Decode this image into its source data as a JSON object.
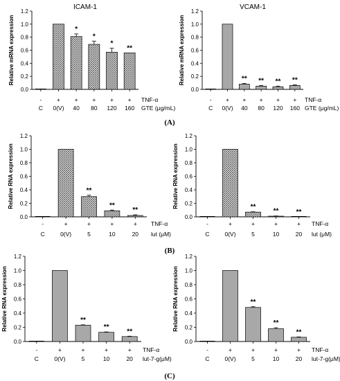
{
  "panel_labels": [
    "(A)",
    "(B)",
    "(C)"
  ],
  "chart_data": [
    {
      "id": "A-left",
      "type": "bar",
      "title": "ICAM-1",
      "ylabel": "Relative mRNA expression",
      "ylim": [
        0,
        1.2
      ],
      "yticks": [
        "0.0",
        "0.2",
        "0.4",
        "0.6",
        "0.8",
        "1.0",
        "1.2"
      ],
      "categories": [
        "C",
        "0(V)",
        "40",
        "80",
        "120",
        "160"
      ],
      "tnf_row": [
        "-",
        "+",
        "+",
        "+",
        "+",
        "+"
      ],
      "tnf_label": "TNF-α",
      "dose_label": "GTE (μg/mL)",
      "values": [
        0.0,
        1.0,
        0.81,
        0.69,
        0.57,
        0.56
      ],
      "errors": [
        0,
        0,
        0.04,
        0.05,
        0.06,
        0.0
      ],
      "significance": [
        "",
        "",
        "*",
        "*",
        "*",
        "**"
      ],
      "pattern": "cross"
    },
    {
      "id": "A-right",
      "type": "bar",
      "title": "VCAM-1",
      "ylabel": "Relative mRNA expression",
      "ylim": [
        0,
        1.2
      ],
      "yticks": [
        "0.0",
        "0.2",
        "0.4",
        "0.6",
        "0.8",
        "1.0",
        "1.2"
      ],
      "categories": [
        "C",
        "0(V)",
        "40",
        "80",
        "120",
        "160"
      ],
      "tnf_row": [
        "-",
        "+",
        "+",
        "+",
        "+",
        "+"
      ],
      "tnf_label": "TNF-α",
      "dose_label": "GTE (μg/mL)",
      "values": [
        0.0,
        1.0,
        0.08,
        0.05,
        0.04,
        0.06
      ],
      "errors": [
        0,
        0,
        0.01,
        0.01,
        0.01,
        0.01
      ],
      "significance": [
        "",
        "",
        "**",
        "**",
        "**",
        "**"
      ],
      "pattern": "solid"
    },
    {
      "id": "B-left",
      "type": "bar",
      "title": "",
      "ylabel": "Relative RNA expression",
      "ylim": [
        0,
        1.2
      ],
      "yticks": [
        "0.0",
        "0.2",
        "0.4",
        "0.6",
        "0.8",
        "1.0",
        "1.2"
      ],
      "categories": [
        "C",
        "0(V)",
        "5",
        "10",
        "20"
      ],
      "tnf_row": [
        "-",
        "+",
        "+",
        "+",
        "+"
      ],
      "tnf_label": "TNF-α",
      "dose_label": "lut (μM)",
      "values": [
        0.0,
        1.0,
        0.3,
        0.09,
        0.02
      ],
      "errors": [
        0,
        0,
        0.02,
        0.01,
        0.01
      ],
      "significance": [
        "",
        "",
        "**",
        "**",
        "**"
      ],
      "pattern": "cross"
    },
    {
      "id": "B-right",
      "type": "bar",
      "title": "",
      "ylabel": "Relative RNA expression",
      "ylim": [
        0,
        1.2
      ],
      "yticks": [
        "0.0",
        "0.2",
        "0.4",
        "0.6",
        "0.8",
        "1.0",
        "1.2"
      ],
      "categories": [
        "C",
        "0(V)",
        "5",
        "10",
        "20"
      ],
      "tnf_row": [
        "-",
        "+",
        "+",
        "+",
        "+"
      ],
      "tnf_label": "TNF-α",
      "dose_label": "lut (μM)",
      "values": [
        0.0,
        1.0,
        0.07,
        0.01,
        0.0
      ],
      "errors": [
        0,
        0,
        0.005,
        0.003,
        0
      ],
      "significance": [
        "",
        "",
        "**",
        "**",
        "**"
      ],
      "pattern": "cross"
    },
    {
      "id": "C-left",
      "type": "bar",
      "title": "",
      "ylabel": "Relative RNA expression",
      "ylim": [
        0,
        1.2
      ],
      "yticks": [
        "0.0",
        "0.2",
        "0.4",
        "0.6",
        "0.8",
        "1.0",
        "1.2"
      ],
      "categories": [
        "C",
        "0(V)",
        "5",
        "10",
        "20"
      ],
      "tnf_row": [
        "-",
        "+",
        "+",
        "+",
        "+"
      ],
      "tnf_label": "TNF-α",
      "dose_label": "lut-7-g(μM)",
      "values": [
        0.0,
        1.0,
        0.23,
        0.13,
        0.07
      ],
      "errors": [
        0,
        0,
        0.005,
        0.005,
        0.005
      ],
      "significance": [
        "",
        "",
        "**",
        "**",
        "**"
      ],
      "pattern": "solid"
    },
    {
      "id": "C-right",
      "type": "bar",
      "title": "",
      "ylabel": "Relative RNA expression",
      "ylim": [
        0,
        1.2
      ],
      "yticks": [
        "0.0",
        "0.2",
        "0.4",
        "0.6",
        "0.8",
        "1.0",
        "1.2"
      ],
      "categories": [
        "C",
        "0(V)",
        "5",
        "10",
        "20"
      ],
      "tnf_row": [
        "-",
        "+",
        "+",
        "+",
        "+"
      ],
      "tnf_label": "TNF-α",
      "dose_label": "lut-7-g(μM)",
      "values": [
        0.0,
        1.0,
        0.48,
        0.18,
        0.06
      ],
      "errors": [
        0,
        0,
        0.01,
        0.015,
        0.005
      ],
      "significance": [
        "",
        "",
        "**",
        "**",
        "**"
      ],
      "pattern": "solid"
    }
  ]
}
